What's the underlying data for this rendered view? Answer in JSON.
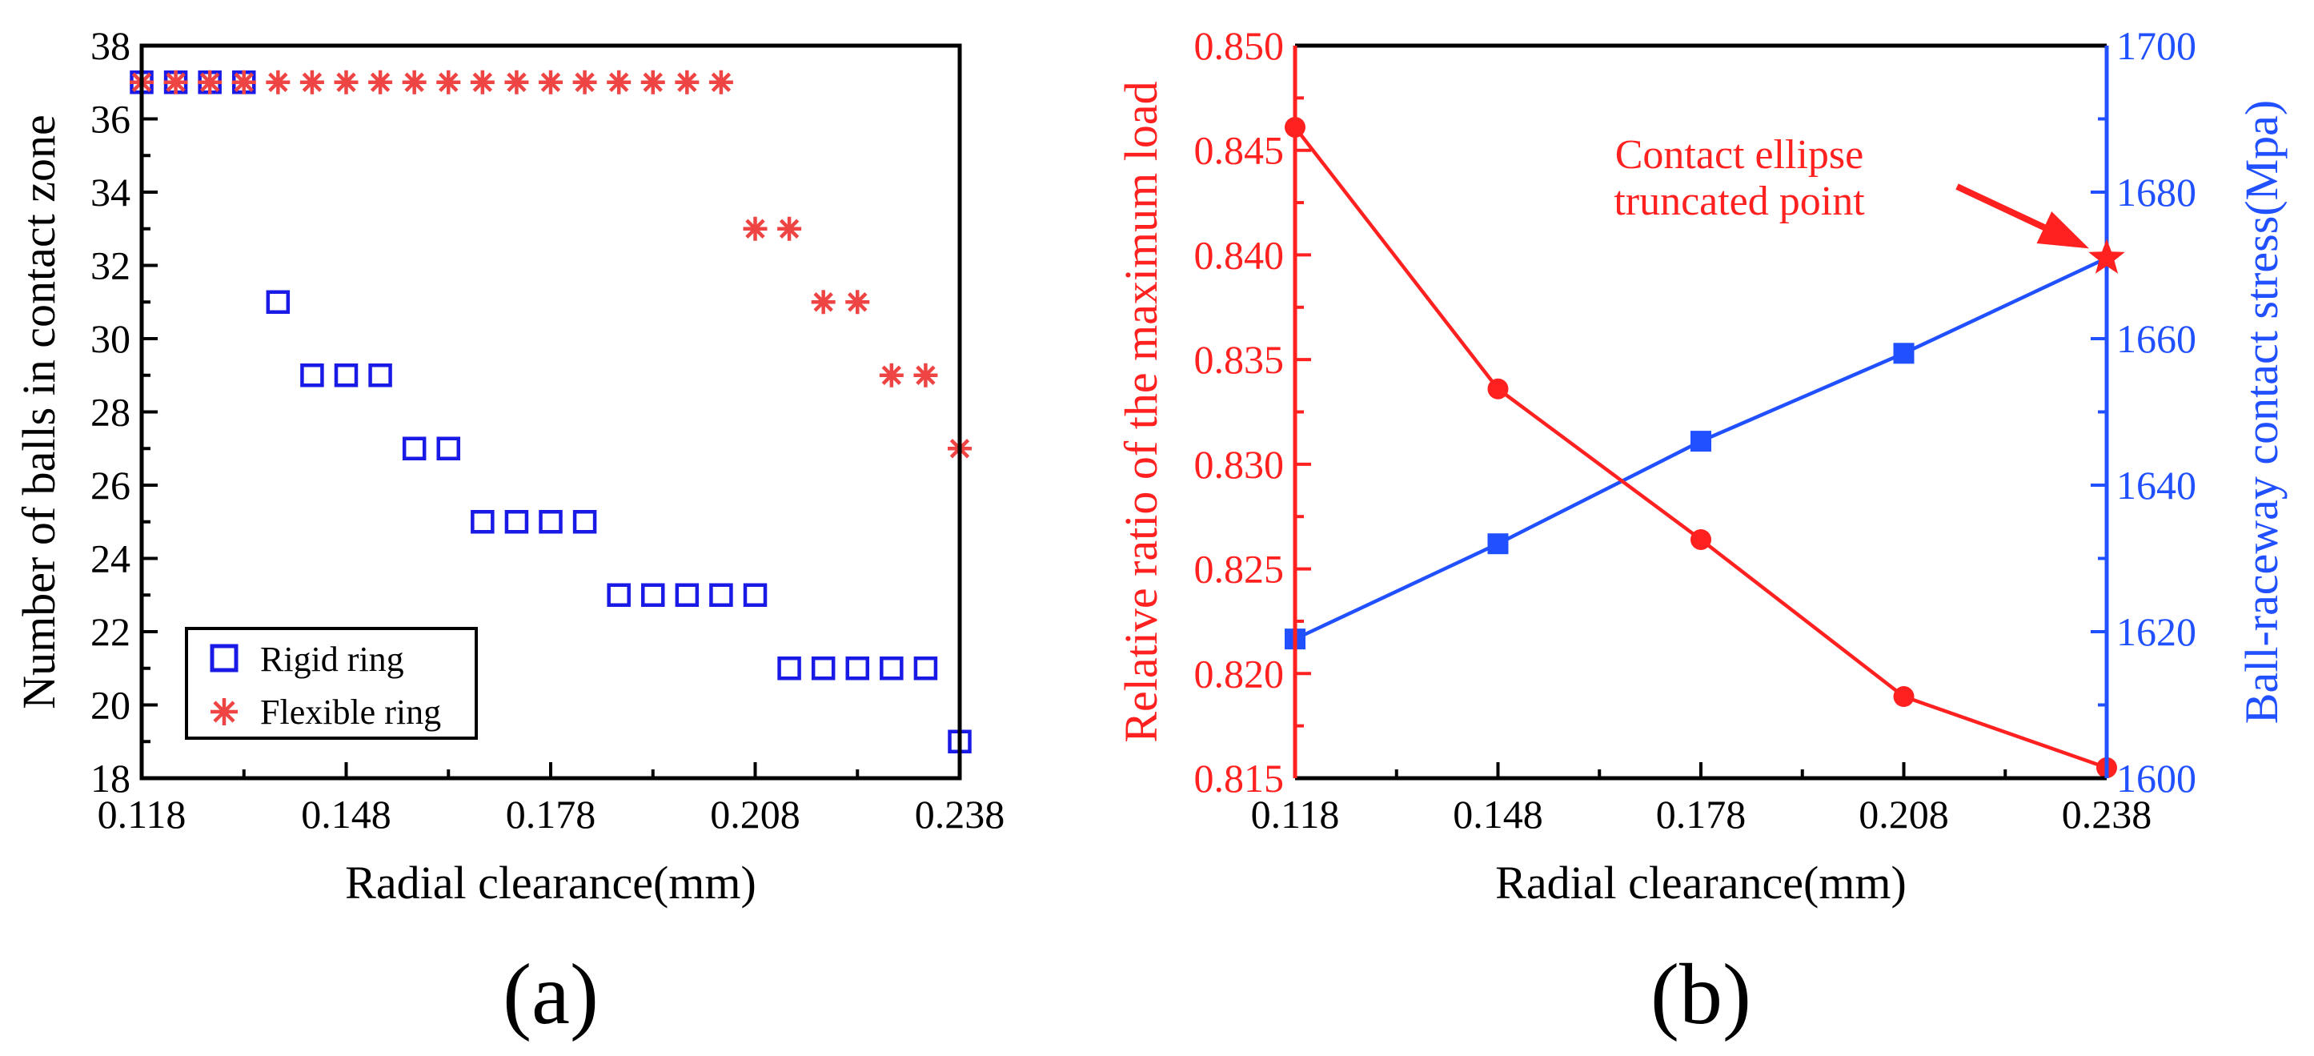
{
  "colors": {
    "red": "#ff2020",
    "blue": "#2050ff",
    "rigid_marker": "#1a1ae6",
    "flexible_marker": "#ee4444",
    "black": "#000000"
  },
  "chart_data": [
    {
      "type": "scatter",
      "panel_label": "(a)",
      "xlabel": "Radial  clearance(mm)",
      "ylabel": "Number of balls in contact zone",
      "xlim": [
        0.118,
        0.238
      ],
      "ylim": [
        18,
        38
      ],
      "xticks": [
        "0.118",
        "0.148",
        "0.178",
        "0.208",
        "0.238"
      ],
      "yticks": [
        "18",
        "20",
        "22",
        "24",
        "26",
        "28",
        "30",
        "32",
        "34",
        "36",
        "38"
      ],
      "legend_position": "bottom-left",
      "series": [
        {
          "name": "Rigid ring",
          "marker": "square",
          "points": [
            [
              0.118,
              37
            ],
            [
              0.123,
              37
            ],
            [
              0.128,
              37
            ],
            [
              0.133,
              37
            ],
            [
              0.138,
              31
            ],
            [
              0.143,
              29
            ],
            [
              0.148,
              29
            ],
            [
              0.153,
              29
            ],
            [
              0.158,
              27
            ],
            [
              0.163,
              27
            ],
            [
              0.168,
              25
            ],
            [
              0.173,
              25
            ],
            [
              0.178,
              25
            ],
            [
              0.183,
              25
            ],
            [
              0.188,
              23
            ],
            [
              0.193,
              23
            ],
            [
              0.198,
              23
            ],
            [
              0.203,
              23
            ],
            [
              0.208,
              23
            ],
            [
              0.213,
              21
            ],
            [
              0.218,
              21
            ],
            [
              0.223,
              21
            ],
            [
              0.228,
              21
            ],
            [
              0.233,
              21
            ],
            [
              0.238,
              19
            ]
          ]
        },
        {
          "name": "Flexible ring",
          "marker": "asterisk",
          "points": [
            [
              0.118,
              37
            ],
            [
              0.123,
              37
            ],
            [
              0.128,
              37
            ],
            [
              0.133,
              37
            ],
            [
              0.138,
              37
            ],
            [
              0.143,
              37
            ],
            [
              0.148,
              37
            ],
            [
              0.153,
              37
            ],
            [
              0.158,
              37
            ],
            [
              0.163,
              37
            ],
            [
              0.168,
              37
            ],
            [
              0.173,
              37
            ],
            [
              0.178,
              37
            ],
            [
              0.183,
              37
            ],
            [
              0.188,
              37
            ],
            [
              0.193,
              37
            ],
            [
              0.198,
              37
            ],
            [
              0.203,
              37
            ],
            [
              0.208,
              33
            ],
            [
              0.213,
              33
            ],
            [
              0.218,
              31
            ],
            [
              0.223,
              31
            ],
            [
              0.228,
              29
            ],
            [
              0.233,
              29
            ],
            [
              0.238,
              27
            ]
          ]
        }
      ]
    },
    {
      "type": "line",
      "panel_label": "(b)",
      "xlabel": "Radial  clearance(mm)",
      "ylabel_left": "Relative ratio of the maximum load",
      "ylabel_right": "Ball-raceway contact stress(Mpa)",
      "x": [
        0.118,
        0.148,
        0.178,
        0.208,
        0.238
      ],
      "xlim": [
        0.118,
        0.238
      ],
      "xticks": [
        "0.118",
        "0.148",
        "0.178",
        "0.208",
        "0.238"
      ],
      "ylim_left": [
        0.815,
        0.85
      ],
      "yticks_left": [
        "0.815",
        "0.820",
        "0.825",
        "0.830",
        "0.835",
        "0.840",
        "0.845",
        "0.850"
      ],
      "ylim_right": [
        1600,
        1700
      ],
      "yticks_right": [
        "1600",
        "1620",
        "1640",
        "1660",
        "1680",
        "1700"
      ],
      "series": [
        {
          "name": "Relative ratio of the maximum load",
          "axis": "left",
          "marker": "circle",
          "values": [
            0.8461,
            0.8336,
            0.8264,
            0.8189,
            0.8155
          ]
        },
        {
          "name": "Ball-raceway contact stress",
          "axis": "right",
          "marker": "square",
          "values": [
            1619,
            1632,
            1646,
            1658,
            1671
          ]
        }
      ],
      "annotation": {
        "lines": [
          "Contact ellipse",
          "truncated point"
        ],
        "target": [
          0.238,
          1671
        ]
      }
    }
  ]
}
